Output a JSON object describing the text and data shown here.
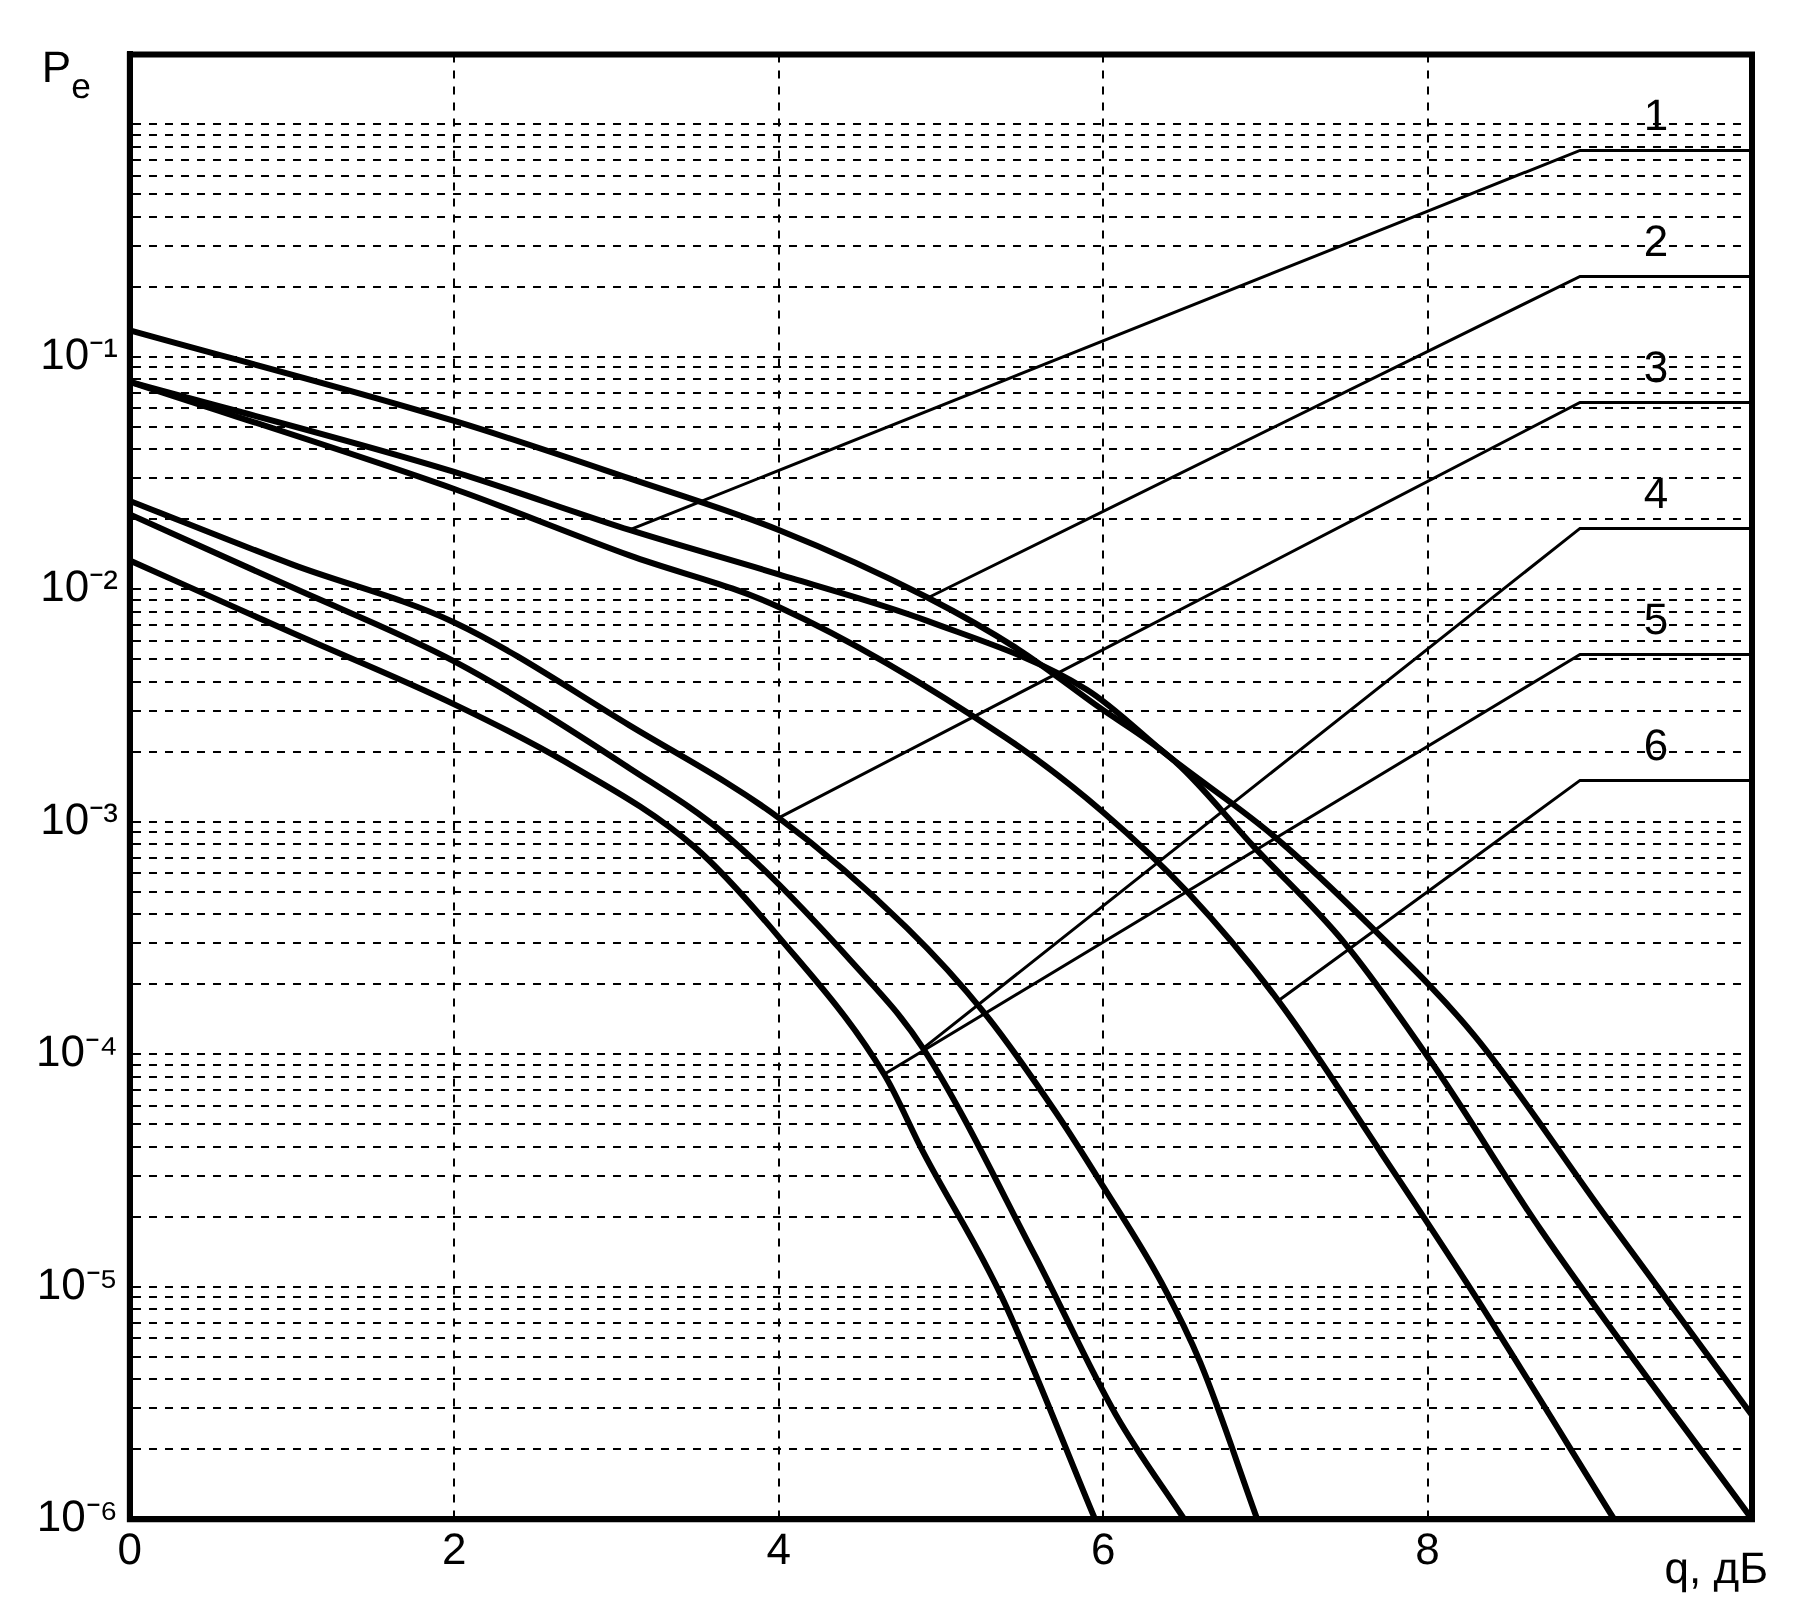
{
  "chart_data": {
    "type": "line",
    "xlabel": "q, дБ",
    "ylabel": "P$_{e}$",
    "log": true,
    "grid": true,
    "marker": "none",
    "line_style": "solid",
    "xlim": [
      0,
      10
    ],
    "xticks": [
      0,
      2,
      4,
      6,
      8,
      {
        "value": 10,
        "label": null
      }
    ],
    "ylim": [
      1e-06,
      2
    ],
    "yticks": [
      {
        "value": 1e-06,
        "label": "10⁻⁶"
      },
      {
        "value": 2e-06,
        "label": null
      },
      {
        "value": 3e-06,
        "label": null
      },
      {
        "value": 4e-06,
        "label": null
      },
      {
        "value": 5e-06,
        "label": null
      },
      {
        "value": 6e-06,
        "label": null
      },
      {
        "value": 7e-06,
        "label": null
      },
      {
        "value": 8e-06,
        "label": null
      },
      {
        "value": 9e-06,
        "label": null
      },
      {
        "value": 1e-05,
        "label": "10⁻⁵"
      },
      {
        "value": 2e-05,
        "label": null
      },
      {
        "value": 3e-05,
        "label": null
      },
      {
        "value": 4e-05,
        "label": null
      },
      {
        "value": 5e-05,
        "label": null
      },
      {
        "value": 6e-05,
        "label": null
      },
      {
        "value": 7e-05,
        "label": null
      },
      {
        "value": 8e-05,
        "label": null
      },
      {
        "value": 9e-05,
        "label": null
      },
      {
        "value": 0.0001,
        "label": "10⁻⁴"
      },
      {
        "value": 0.0002,
        "label": null
      },
      {
        "value": 0.0003,
        "label": null
      },
      {
        "value": 0.0004,
        "label": null
      },
      {
        "value": 0.0005,
        "label": null
      },
      {
        "value": 0.0006,
        "label": null
      },
      {
        "value": 0.0007,
        "label": null
      },
      {
        "value": 0.0008,
        "label": null
      },
      {
        "value": 0.0009,
        "label": null
      },
      {
        "value": 0.001,
        "label": "10⁻³"
      },
      {
        "value": 0.002,
        "label": null
      },
      {
        "value": 0.003,
        "label": null
      },
      {
        "value": 0.004,
        "label": null
      },
      {
        "value": 0.005,
        "label": null
      },
      {
        "value": 0.006,
        "label": null
      },
      {
        "value": 0.007,
        "label": null
      },
      {
        "value": 0.008,
        "label": null
      },
      {
        "value": 0.009,
        "label": null
      },
      {
        "value": 0.01,
        "label": "10⁻²"
      },
      {
        "value": 0.02,
        "label": null
      },
      {
        "value": 0.03,
        "label": null
      },
      {
        "value": 0.04,
        "label": null
      },
      {
        "value": 0.05,
        "label": null
      },
      {
        "value": 0.06,
        "label": null
      },
      {
        "value": 0.07,
        "label": null
      },
      {
        "value": 0.08,
        "label": null
      },
      {
        "value": 0.09,
        "label": null
      },
      {
        "value": 0.1,
        "label": "10⁻¹"
      },
      {
        "value": 0.2,
        "label": null
      },
      {
        "value": 0.3,
        "label": null
      },
      {
        "value": 0.4,
        "label": null
      },
      {
        "value": 0.5,
        "label": null
      },
      {
        "value": 0.6,
        "label": null
      },
      {
        "value": 0.7,
        "label": null
      },
      {
        "value": 0.8,
        "label": null
      },
      {
        "value": 0.9,
        "label": null
      },
      {
        "value": 1,
        "label": null
      }
    ],
    "series": [
      {
        "name": "1",
        "color": "#000000",
        "x": [
          0,
          2,
          3.08,
          4,
          4.92,
          5.9,
          6.41,
          7.05,
          7.64,
          8.29,
          9.1,
          10
        ],
        "values": [
          0.078,
          0.032,
          0.018,
          0.0116,
          0.0073,
          0.0037,
          0.0019,
          0.00087,
          0.00036,
          0.00012,
          2e-05,
          2.8e-06
        ]
      },
      {
        "name": "2",
        "color": "#000000",
        "x": [
          0,
          2,
          3.08,
          4,
          4.92,
          5.48,
          5.95,
          6.45,
          6.93,
          7.49,
          8.05,
          8.7,
          10
        ],
        "values": [
          0.13,
          0.053,
          0.03,
          0.018,
          0.0092,
          0.0055,
          0.0032,
          0.0018,
          0.00078,
          0.0003,
          8.7e-05,
          1.75e-05,
          1e-06
        ]
      },
      {
        "name": "3",
        "color": "#000000",
        "x": [
          0,
          1,
          2,
          3.08,
          4,
          4.79,
          5.27,
          5.71,
          6,
          6.36,
          6.6,
          6.95
        ],
        "values": [
          0.024,
          0.0128,
          0.0072,
          0.0026,
          0.00104,
          0.00035,
          0.00015,
          5.6e-05,
          2.7e-05,
          1.04e-05,
          4.7e-06,
          1e-06
        ]
      },
      {
        "name": "4",
        "color": "#000000",
        "x": [
          0,
          1,
          2,
          3.08,
          3.68,
          4.45,
          4.89,
          5.58,
          6.08,
          6.5
        ],
        "values": [
          0.021,
          0.0102,
          0.0049,
          0.0017,
          0.00087,
          0.00025,
          0.000106,
          1.36e-05,
          2.8e-06,
          1e-06
        ]
      },
      {
        "name": "5",
        "color": "#000000",
        "x": [
          0,
          1,
          2,
          2.69,
          3.48,
          4,
          4.65,
          4.89,
          5.37,
          5.95
        ],
        "values": [
          0.0133,
          0.0065,
          0.0032,
          0.0018,
          0.00078,
          0.00032,
          8.2e-05,
          3.8e-05,
          9.2e-06,
          1e-06
        ]
      },
      {
        "name": "6",
        "color": "#000000",
        "x": [
          0,
          2,
          3.08,
          4,
          5.4,
          6,
          6.53,
          7.08,
          7.71,
          8.29,
          9.15
        ],
        "values": [
          0.078,
          0.027,
          0.014,
          0.0084,
          0.0023,
          0.0011,
          0.00049,
          0.00017,
          3.8e-05,
          9.2e-06,
          1e-06
        ]
      }
    ]
  }
}
